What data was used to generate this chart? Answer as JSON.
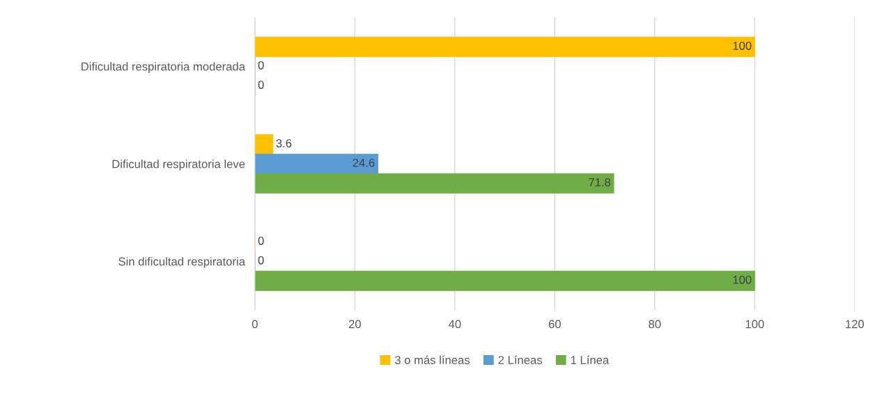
{
  "chart_data": {
    "type": "bar",
    "orientation": "horizontal",
    "categories": [
      "Dificultad respiratoria moderada",
      "Dificultad respiratoria leve",
      "Sin dificultad respiratoria"
    ],
    "series": [
      {
        "name": "3 o más líneas",
        "color": "#ffc000",
        "values": [
          100,
          3.6,
          0
        ]
      },
      {
        "name": "2 Líneas",
        "color": "#5b9bd5",
        "values": [
          0,
          24.6,
          0
        ]
      },
      {
        "name": "1 Línea",
        "color": "#70ad47",
        "values": [
          0,
          71.8,
          100
        ]
      }
    ],
    "xlim": [
      0,
      120
    ],
    "xticks": [
      0,
      20,
      40,
      60,
      80,
      100,
      120
    ],
    "grid": "x",
    "legend": "bottom",
    "data_labels": true
  }
}
